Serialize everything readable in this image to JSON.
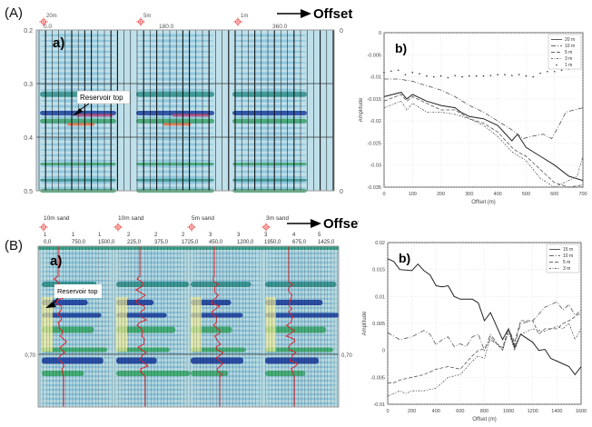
{
  "figure": {
    "label_A": "(A)",
    "label_B": "(B)",
    "offset_label": "Offset",
    "sub_a": "a)",
    "sub_b": "b)",
    "reservoir_label": "Reservoir top"
  },
  "seismic_A": {
    "sand_labels": [
      "20m",
      "5m",
      "1m"
    ],
    "offset_labels": [
      "0.0",
      "180.0",
      "360.0"
    ],
    "time_ticks": [
      "0.2",
      "0.3",
      "0.4",
      "0.5"
    ],
    "right_ticks": [
      "0",
      "0"
    ]
  },
  "seismic_B": {
    "sand_labels": [
      "10m sand",
      "10m sand",
      "5m sand",
      "3m sand"
    ],
    "gather_numbers": [
      "1",
      "1",
      "1",
      "2",
      "2",
      "2",
      "3",
      "3",
      "3",
      "4",
      "5"
    ],
    "offset_labels": [
      "0,0",
      "750,0",
      "1500,0",
      "225,0",
      "375,0",
      "1725,0",
      "450,0",
      "1200,0",
      "1950,0",
      "675,0",
      "1425,0"
    ],
    "time_tick": "0,70",
    "colors": {
      "log": "#e8202a",
      "blue": "#1c3f9e",
      "green": "#3aa86a",
      "yellow": "#f4ef9a"
    }
  },
  "chart_data": [
    {
      "type": "line",
      "title": "b)",
      "xlabel": "Offset (m)",
      "ylabel": "Amplitude",
      "xlim": [
        0,
        700
      ],
      "ylim": [
        -0.035,
        0
      ],
      "xticks": [
        0,
        100,
        200,
        300,
        400,
        500,
        600,
        700
      ],
      "yticks": [
        0,
        -0.005,
        -0.01,
        -0.015,
        -0.02,
        -0.025,
        -0.03,
        -0.035
      ],
      "ytick_labels": [
        "0",
        "-0.005",
        "-0.01",
        "-0.015",
        "-0.02",
        "-0.025",
        "-0.03",
        "-0.035"
      ],
      "grid": true,
      "legend": "top-right",
      "series": [
        {
          "name": "20 m",
          "style": "solid",
          "x": [
            0,
            60,
            80,
            100,
            150,
            200,
            250,
            270,
            300,
            350,
            400,
            450,
            470,
            500,
            550,
            600,
            650,
            700
          ],
          "y": [
            -0.0145,
            -0.0135,
            -0.015,
            -0.014,
            -0.0155,
            -0.0165,
            -0.017,
            -0.018,
            -0.019,
            -0.0195,
            -0.021,
            -0.0245,
            -0.023,
            -0.026,
            -0.028,
            -0.03,
            -0.0325,
            -0.0335
          ]
        },
        {
          "name": "10 m",
          "style": "dashdot",
          "x": [
            0,
            50,
            100,
            150,
            200,
            250,
            300,
            350,
            400,
            450,
            490,
            520,
            560,
            590,
            620,
            640,
            700
          ],
          "y": [
            -0.0105,
            -0.0105,
            -0.011,
            -0.012,
            -0.013,
            -0.0145,
            -0.0165,
            -0.018,
            -0.02,
            -0.022,
            -0.024,
            -0.0235,
            -0.023,
            -0.024,
            -0.0205,
            -0.018,
            -0.017
          ]
        },
        {
          "name": "5 m",
          "style": "dashed",
          "x": [
            0,
            60,
            80,
            100,
            150,
            200,
            250,
            300,
            350,
            400,
            450,
            470,
            500,
            550,
            600,
            650,
            700
          ],
          "y": [
            -0.0155,
            -0.014,
            -0.0155,
            -0.0145,
            -0.016,
            -0.0175,
            -0.0175,
            -0.0195,
            -0.0205,
            -0.0225,
            -0.026,
            -0.027,
            -0.028,
            -0.031,
            -0.034,
            -0.035,
            -0.0345
          ]
        },
        {
          "name": "3 m",
          "style": "dotdash",
          "x": [
            0,
            60,
            80,
            100,
            150,
            200,
            250,
            300,
            350,
            400,
            450,
            500,
            550,
            600,
            650,
            680,
            700
          ],
          "y": [
            -0.017,
            -0.0155,
            -0.0175,
            -0.016,
            -0.018,
            -0.018,
            -0.0185,
            -0.0195,
            -0.021,
            -0.0235,
            -0.027,
            -0.029,
            -0.033,
            -0.035,
            -0.0335,
            -0.0325,
            -0.028
          ]
        },
        {
          "name": "1 m",
          "style": "dots",
          "x": [
            0,
            25,
            50,
            75,
            100,
            125,
            150,
            175,
            200,
            225,
            250,
            275,
            300,
            325,
            350,
            375,
            400,
            425,
            450,
            475,
            500,
            525,
            550,
            575,
            600,
            625,
            650
          ],
          "y": [
            -0.009,
            -0.0087,
            -0.0085,
            -0.0095,
            -0.009,
            -0.0093,
            -0.0098,
            -0.01,
            -0.0098,
            -0.0102,
            -0.0097,
            -0.01,
            -0.0098,
            -0.0098,
            -0.0098,
            -0.0097,
            -0.0095,
            -0.0095,
            -0.0097,
            -0.0095,
            -0.0098,
            -0.01,
            -0.0092,
            -0.0088,
            -0.0088,
            -0.0085,
            -0.0082
          ]
        }
      ]
    },
    {
      "type": "line",
      "title": "b)",
      "xlabel": "Offset (m)",
      "ylabel": "Amplitude",
      "xlim": [
        0,
        1600
      ],
      "ylim": [
        -0.01,
        0.02
      ],
      "xticks": [
        0,
        200,
        400,
        600,
        800,
        1000,
        1200,
        1400,
        1600
      ],
      "yticks": [
        0.02,
        0.015,
        0.01,
        0.005,
        0,
        -0.005,
        -0.01
      ],
      "ytick_labels": [
        "0.02",
        "0.015",
        "0.01",
        "0.005",
        "0",
        "-0.005",
        "-0.01"
      ],
      "grid": true,
      "legend": "top-right",
      "series": [
        {
          "name": "15 m",
          "style": "solid",
          "x": [
            0,
            50,
            100,
            200,
            250,
            300,
            350,
            400,
            450,
            500,
            550,
            600,
            700,
            750,
            800,
            850,
            950,
            1000,
            1050,
            1100,
            1200,
            1250,
            1300,
            1350,
            1400,
            1500,
            1550,
            1600
          ],
          "y": [
            0.017,
            0.0165,
            0.015,
            0.0148,
            0.016,
            0.0148,
            0.014,
            0.012,
            0.0118,
            0.012,
            0.01,
            0.0095,
            0.0095,
            0.0088,
            0.0055,
            0.007,
            0.002,
            0.004,
            0.0005,
            0.003,
            0.0015,
            0,
            0.0002,
            -0.0015,
            -0.002,
            -0.003,
            -0.0045,
            -0.003
          ]
        },
        {
          "name": "10 m",
          "style": "dashdot",
          "x": [
            0,
            100,
            200,
            300,
            350,
            400,
            450,
            500,
            550,
            600,
            650,
            700,
            750,
            800,
            850,
            950,
            1000,
            1050,
            1100,
            1200,
            1300,
            1400,
            1450,
            1500,
            1550,
            1600
          ],
          "y": [
            0.0033,
            0.002,
            0.0025,
            0.0037,
            0.003,
            0.001,
            0.002,
            0.0025,
            0.0007,
            0.0012,
            0.0007,
            0.0025,
            0.003,
            0,
            0.003,
            0,
            0.004,
            0.001,
            0.005,
            0.0055,
            0.008,
            0.009,
            0.0075,
            0.0085,
            0.0065,
            0.0075
          ]
        },
        {
          "name": "5 m",
          "style": "dashed",
          "x": [
            0,
            50,
            100,
            200,
            300,
            400,
            500,
            600,
            700,
            750,
            800,
            850,
            950,
            1000,
            1050,
            1100,
            1200,
            1250,
            1300,
            1400,
            1450,
            1500,
            1600
          ],
          "y": [
            -0.006,
            -0.006,
            -0.0055,
            -0.005,
            -0.0045,
            -0.0035,
            -0.003,
            -0.0035,
            -0.001,
            0,
            0.0003,
            0.002,
            0.0005,
            0.004,
            0.0015,
            0.0055,
            0.0055,
            0.003,
            0.004,
            0.004,
            0.005,
            0.0055,
            0.007
          ]
        },
        {
          "name": "3 m",
          "style": "dotdash",
          "x": [
            0,
            100,
            150,
            200,
            300,
            400,
            450,
            500,
            600,
            700,
            750,
            800,
            850,
            950,
            1000,
            1050,
            1100,
            1200,
            1300,
            1400,
            1450,
            1500,
            1550,
            1600
          ],
          "y": [
            -0.0085,
            -0.0075,
            -0.008,
            -0.0075,
            -0.0075,
            -0.007,
            -0.006,
            -0.005,
            -0.0045,
            -0.002,
            -0.001,
            -0.0015,
            0.0025,
            0,
            0.0035,
            0,
            0.003,
            0.004,
            0.0035,
            0.0045,
            0.004,
            0.005,
            0.002,
            0.004
          ]
        }
      ]
    }
  ]
}
